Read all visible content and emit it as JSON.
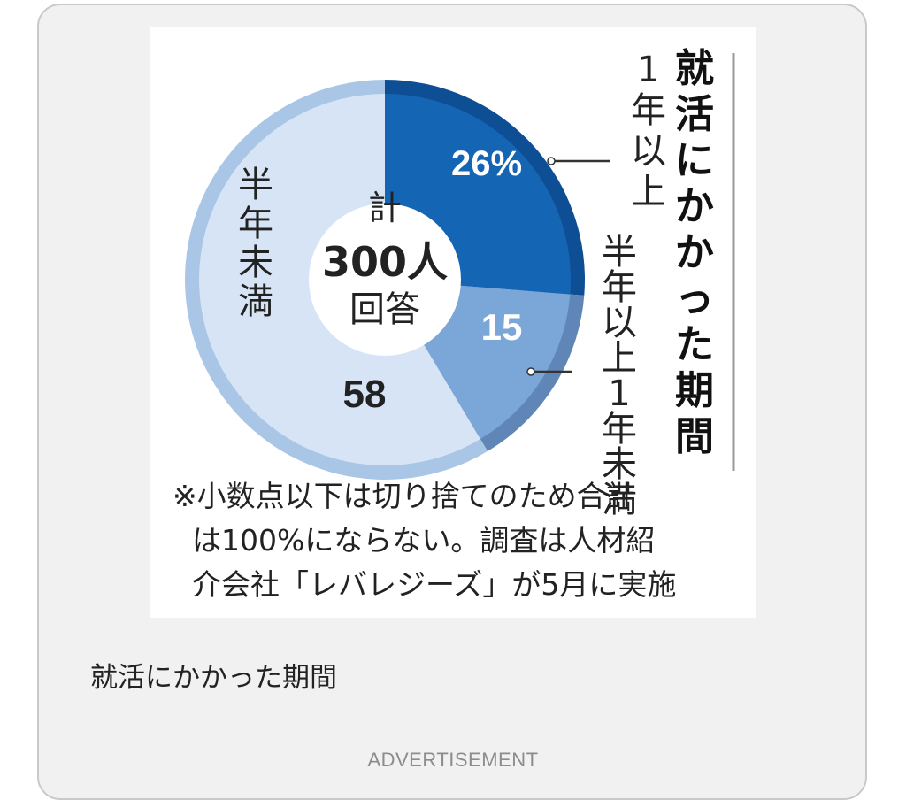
{
  "chart_data": {
    "type": "pie",
    "title": "就活にかかった期間",
    "total_label": [
      "計",
      "300人",
      "回答"
    ],
    "slices": [
      {
        "label": "1年以上",
        "value": 26,
        "value_label": "26%",
        "color": "#1565b5",
        "rim": "#0e4e95"
      },
      {
        "label": "半年以上1年未満",
        "value": 15,
        "value_label": "15",
        "color": "#7aa6d8",
        "rim": "#5f86b6"
      },
      {
        "label": "半年未満",
        "value": 58,
        "value_label": "58",
        "color": "#d6e4f5",
        "rim": "#a9c6e6"
      }
    ],
    "note": [
      "※小数点以下は切り捨てのため合計",
      "は100%にならない。調査は人材紹",
      "介会社「レバレジーズ」が5月に実施"
    ]
  },
  "caption": "就活にかかった期間",
  "advertisement": "ADVERTISEMENT"
}
